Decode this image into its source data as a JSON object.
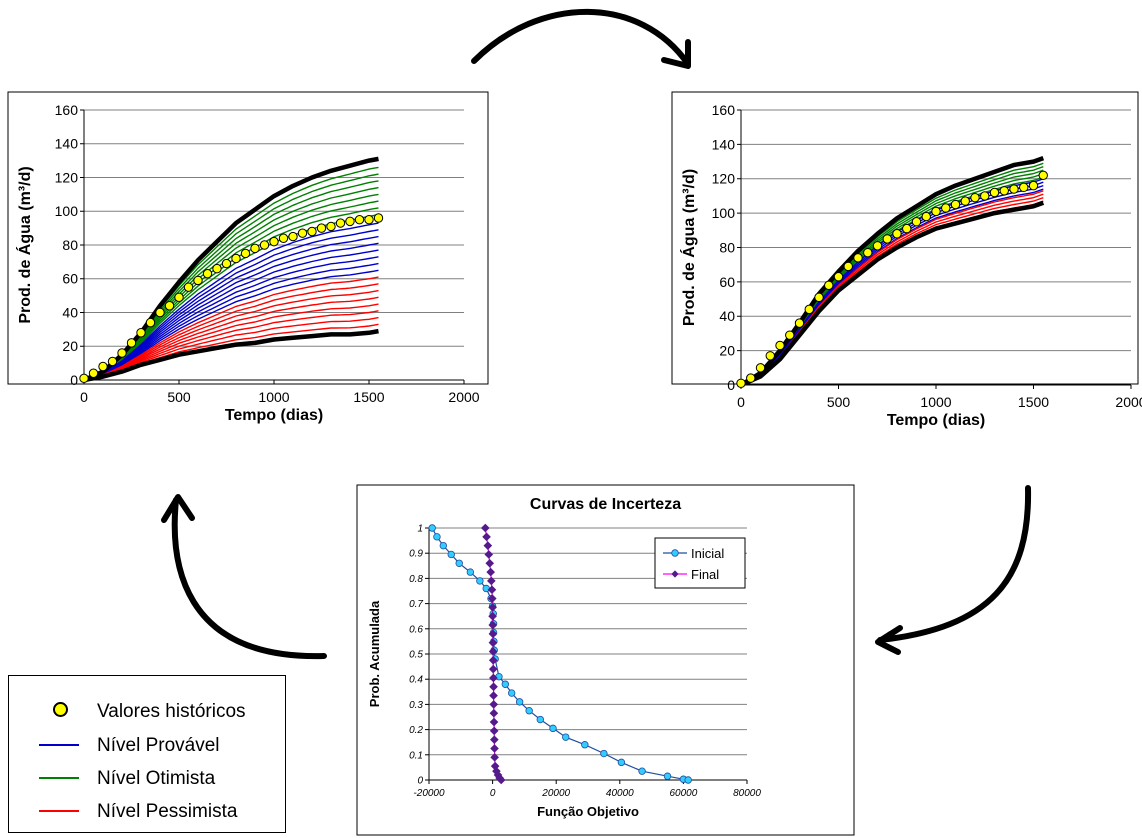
{
  "chart_data": [
    {
      "type": "line",
      "id": "left",
      "xlabel": "Tempo (dias)",
      "ylabel": "Prod. de Água (m³/d)",
      "xlim": [
        0,
        2000
      ],
      "ylim": [
        0,
        160
      ],
      "xticks": [
        "0",
        "500",
        "1000",
        "1500",
        "2000"
      ],
      "yticks": [
        "0",
        "20",
        "40",
        "60",
        "80",
        "100",
        "120",
        "140",
        "160"
      ],
      "grid": true,
      "x_end": 1550,
      "upper_envelope": [
        [
          0,
          0
        ],
        [
          100,
          5
        ],
        [
          200,
          15
        ],
        [
          300,
          28
        ],
        [
          400,
          44
        ],
        [
          500,
          58
        ],
        [
          600,
          71
        ],
        [
          700,
          82
        ],
        [
          800,
          93
        ],
        [
          900,
          101
        ],
        [
          1000,
          109
        ],
        [
          1100,
          115
        ],
        [
          1200,
          120
        ],
        [
          1300,
          124
        ],
        [
          1400,
          127
        ],
        [
          1500,
          130
        ],
        [
          1550,
          131
        ]
      ],
      "lower_envelope": [
        [
          0,
          0
        ],
        [
          100,
          2
        ],
        [
          200,
          5
        ],
        [
          300,
          9
        ],
        [
          400,
          12
        ],
        [
          500,
          15
        ],
        [
          600,
          17
        ],
        [
          700,
          19
        ],
        [
          800,
          21
        ],
        [
          900,
          22
        ],
        [
          1000,
          24
        ],
        [
          1100,
          25
        ],
        [
          1200,
          26
        ],
        [
          1300,
          27
        ],
        [
          1400,
          27
        ],
        [
          1500,
          28
        ],
        [
          1550,
          29
        ]
      ],
      "series_groups": [
        {
          "group": "Nível Otimista",
          "color": "#008000",
          "finals": [
            126,
            122,
            118,
            114,
            110,
            106,
            102,
            98
          ]
        },
        {
          "group": "Nível Provável",
          "color": "#0000cc",
          "finals": [
            93,
            89,
            85,
            81,
            77,
            73,
            69,
            65
          ]
        },
        {
          "group": "Nível Pessimista",
          "color": "#ff0000",
          "finals": [
            61,
            57,
            53,
            49,
            45,
            41,
            37,
            33
          ]
        }
      ],
      "historical_x": [
        0,
        50,
        100,
        150,
        200,
        250,
        300,
        350,
        400,
        450,
        500,
        550,
        600,
        650,
        700,
        750,
        800,
        850,
        900,
        950,
        1000,
        1050,
        1100,
        1150,
        1200,
        1250,
        1300,
        1350,
        1400,
        1450,
        1500,
        1550
      ],
      "historical_y": [
        1,
        4,
        8,
        11,
        16,
        22,
        28,
        34,
        40,
        44,
        49,
        55,
        59,
        63,
        66,
        69,
        72,
        75,
        78,
        80,
        82,
        84,
        85,
        87,
        88,
        90,
        91,
        93,
        94,
        95,
        95,
        96
      ]
    },
    {
      "type": "line",
      "id": "right",
      "xlabel": "Tempo (dias)",
      "ylabel": "Prod. de Água (m³/d)",
      "xlim": [
        0,
        2000
      ],
      "ylim": [
        0,
        160
      ],
      "xticks": [
        "0",
        "500",
        "1000",
        "1500",
        "2000"
      ],
      "yticks": [
        "0",
        "20",
        "40",
        "60",
        "80",
        "100",
        "120",
        "140",
        "160"
      ],
      "grid": true,
      "x_end": 1550,
      "upper_envelope": [
        [
          0,
          0
        ],
        [
          100,
          7
        ],
        [
          200,
          20
        ],
        [
          300,
          36
        ],
        [
          400,
          53
        ],
        [
          500,
          66
        ],
        [
          600,
          78
        ],
        [
          700,
          88
        ],
        [
          800,
          97
        ],
        [
          900,
          104
        ],
        [
          1000,
          111
        ],
        [
          1100,
          116
        ],
        [
          1200,
          120
        ],
        [
          1300,
          124
        ],
        [
          1400,
          128
        ],
        [
          1500,
          130
        ],
        [
          1550,
          132
        ]
      ],
      "lower_envelope": [
        [
          0,
          0
        ],
        [
          100,
          5
        ],
        [
          200,
          15
        ],
        [
          300,
          29
        ],
        [
          400,
          43
        ],
        [
          500,
          55
        ],
        [
          600,
          64
        ],
        [
          700,
          73
        ],
        [
          800,
          80
        ],
        [
          900,
          86
        ],
        [
          1000,
          91
        ],
        [
          1100,
          94
        ],
        [
          1200,
          97
        ],
        [
          1300,
          100
        ],
        [
          1400,
          102
        ],
        [
          1500,
          104
        ],
        [
          1550,
          106
        ]
      ],
      "series_groups": [
        {
          "group": "Nível Otimista",
          "color": "#008000",
          "finals": [
            129,
            127,
            125,
            123,
            121
          ]
        },
        {
          "group": "Nível Provável",
          "color": "#0000cc",
          "finals": [
            120,
            118,
            116,
            114
          ]
        },
        {
          "group": "Nível Pessimista",
          "color": "#ff0000",
          "finals": [
            113,
            111,
            109,
            107
          ]
        }
      ],
      "historical_x": [
        0,
        50,
        100,
        150,
        200,
        250,
        300,
        350,
        400,
        450,
        500,
        550,
        600,
        650,
        700,
        750,
        800,
        850,
        900,
        950,
        1000,
        1050,
        1100,
        1150,
        1200,
        1250,
        1300,
        1350,
        1400,
        1450,
        1500,
        1550
      ],
      "historical_y": [
        1,
        4,
        10,
        17,
        23,
        29,
        36,
        44,
        51,
        58,
        63,
        69,
        74,
        77,
        81,
        85,
        88,
        91,
        95,
        98,
        101,
        103,
        105,
        107,
        109,
        110,
        112,
        113,
        114,
        115,
        116,
        122
      ]
    },
    {
      "type": "line",
      "id": "bottom",
      "title": "Curvas de Incerteza",
      "xlabel": "Função Objetivo",
      "ylabel": "Prob. Acumulada",
      "xlim": [
        -20000,
        80000
      ],
      "ylim": [
        0,
        1
      ],
      "xticks": [
        "-20000",
        "0",
        "20000",
        "40000",
        "60000",
        "80000"
      ],
      "yticks": [
        "0",
        "0.1",
        "0.2",
        "0.3",
        "0.4",
        "0.5",
        "0.6",
        "0.7",
        "0.8",
        "0.9",
        "1"
      ],
      "grid": true,
      "legend_position": "top-right",
      "series": [
        {
          "name": "Inicial",
          "color": "#1f4fa0",
          "marker_color": "#33ccff",
          "points": [
            [
              -19000,
              1
            ],
            [
              -17500,
              0.965
            ],
            [
              -15500,
              0.93
            ],
            [
              -13000,
              0.895
            ],
            [
              -10500,
              0.86
            ],
            [
              -7000,
              0.825
            ],
            [
              -4000,
              0.79
            ],
            [
              -2000,
              0.76
            ],
            [
              -500,
              0.72
            ],
            [
              0,
              0.69
            ],
            [
              200,
              0.66
            ],
            [
              300,
              0.62
            ],
            [
              300,
              0.585
            ],
            [
              400,
              0.55
            ],
            [
              500,
              0.515
            ],
            [
              800,
              0.48
            ],
            [
              2000,
              0.41
            ],
            [
              4000,
              0.38
            ],
            [
              6000,
              0.345
            ],
            [
              8500,
              0.31
            ],
            [
              11500,
              0.275
            ],
            [
              15000,
              0.24
            ],
            [
              19000,
              0.205
            ],
            [
              23000,
              0.17
            ],
            [
              29000,
              0.14
            ],
            [
              35000,
              0.105
            ],
            [
              40500,
              0.07
            ],
            [
              47000,
              0.035
            ],
            [
              55000,
              0.015
            ],
            [
              60000,
              0.003
            ],
            [
              61500,
              0
            ]
          ]
        },
        {
          "name": "Final",
          "color": "#ff00ff",
          "marker_color": "#551a8b",
          "points": [
            [
              -2300,
              1
            ],
            [
              -1900,
              0.965
            ],
            [
              -1500,
              0.93
            ],
            [
              -1200,
              0.895
            ],
            [
              -900,
              0.86
            ],
            [
              -600,
              0.825
            ],
            [
              -400,
              0.79
            ],
            [
              -200,
              0.755
            ],
            [
              -100,
              0.72
            ],
            [
              0,
              0.685
            ],
            [
              0,
              0.65
            ],
            [
              50,
              0.615
            ],
            [
              100,
              0.58
            ],
            [
              100,
              0.545
            ],
            [
              150,
              0.51
            ],
            [
              200,
              0.475
            ],
            [
              200,
              0.44
            ],
            [
              250,
              0.405
            ],
            [
              300,
              0.37
            ],
            [
              300,
              0.335
            ],
            [
              350,
              0.3
            ],
            [
              400,
              0.265
            ],
            [
              450,
              0.23
            ],
            [
              500,
              0.195
            ],
            [
              550,
              0.16
            ],
            [
              600,
              0.125
            ],
            [
              650,
              0.09
            ],
            [
              800,
              0.055
            ],
            [
              1200,
              0.035
            ],
            [
              1700,
              0.02
            ],
            [
              2200,
              0.008
            ],
            [
              2700,
              0
            ]
          ]
        }
      ]
    }
  ],
  "legend_items": [
    {
      "label": "Valores históricos",
      "kind": "dot",
      "color": "#ffff00"
    },
    {
      "label": "Nível Provável",
      "kind": "line",
      "color": "#0000cc"
    },
    {
      "label": "Nível Otimista",
      "kind": "line",
      "color": "#008000"
    },
    {
      "label": "Nível Pessimista",
      "kind": "line",
      "color": "#ff0000"
    }
  ]
}
